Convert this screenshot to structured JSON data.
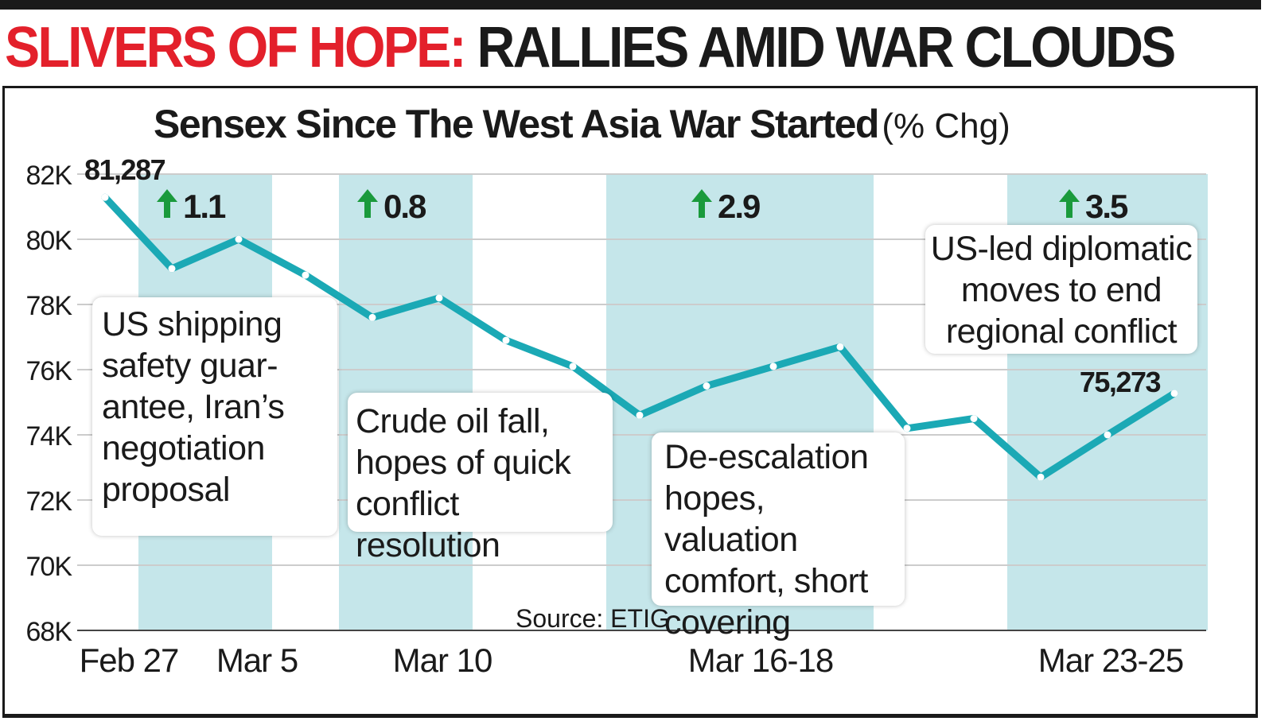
{
  "headline": {
    "red": "SLIVERS OF HOPE:",
    "black": "RALLIES AMID WAR CLOUDS"
  },
  "subtitle": {
    "main": "Sensex Since The West Asia War Started",
    "unit": "(% Chg)"
  },
  "source": "Source: ETIG",
  "colors": {
    "line": "#1ba9b5",
    "band": "#c5e6ea",
    "grid": "#cccccc",
    "up_arrow": "#1a9a3c",
    "headline_red": "#e3202b"
  },
  "notes": {
    "shipping": "US shipping safety guar-antee, Iran’s negotiation proposal",
    "crude": "Crude oil fall, hopes of quick conflict resolution",
    "deescalation": "De-escalation hopes, valuation comfort, short covering",
    "diplomatic": "US-led diplomatic moves to end regional conflict"
  },
  "chart_data": {
    "type": "line",
    "title": "Sensex Since The West Asia War Started",
    "unit": "(% Chg)",
    "ylim": [
      68000,
      82000
    ],
    "yticks": [
      68000,
      70000,
      72000,
      74000,
      76000,
      78000,
      80000,
      82000
    ],
    "ytick_labels": [
      "68K",
      "70K",
      "72K",
      "74K",
      "76K",
      "78K",
      "80K",
      "82K"
    ],
    "series": [
      {
        "name": "Sensex",
        "values": [
          81287,
          79100,
          80000,
          78900,
          77600,
          78200,
          76900,
          76100,
          74600,
          75500,
          76100,
          76700,
          74200,
          74500,
          72700,
          74000,
          75273
        ]
      }
    ],
    "x_labels": [
      {
        "index": 0,
        "label": "Feb 27"
      },
      {
        "index": 2,
        "label": "Mar 5"
      },
      {
        "index": 5,
        "label": "Mar 10"
      },
      {
        "index": 10,
        "label": "Mar 16-18"
      },
      {
        "index": 15,
        "label": "Mar 23-25"
      }
    ],
    "value_labels": [
      {
        "index": 0,
        "text": "81,287"
      },
      {
        "index": 16,
        "text": "75,273"
      }
    ],
    "rally_bands": [
      {
        "from": 1,
        "to": 2,
        "change": "1.1"
      },
      {
        "from": 4,
        "to": 5,
        "change": "0.8"
      },
      {
        "from": 8,
        "to": 11,
        "change": "2.9"
      },
      {
        "from": 14,
        "to": 16,
        "change": "3.5"
      }
    ]
  }
}
